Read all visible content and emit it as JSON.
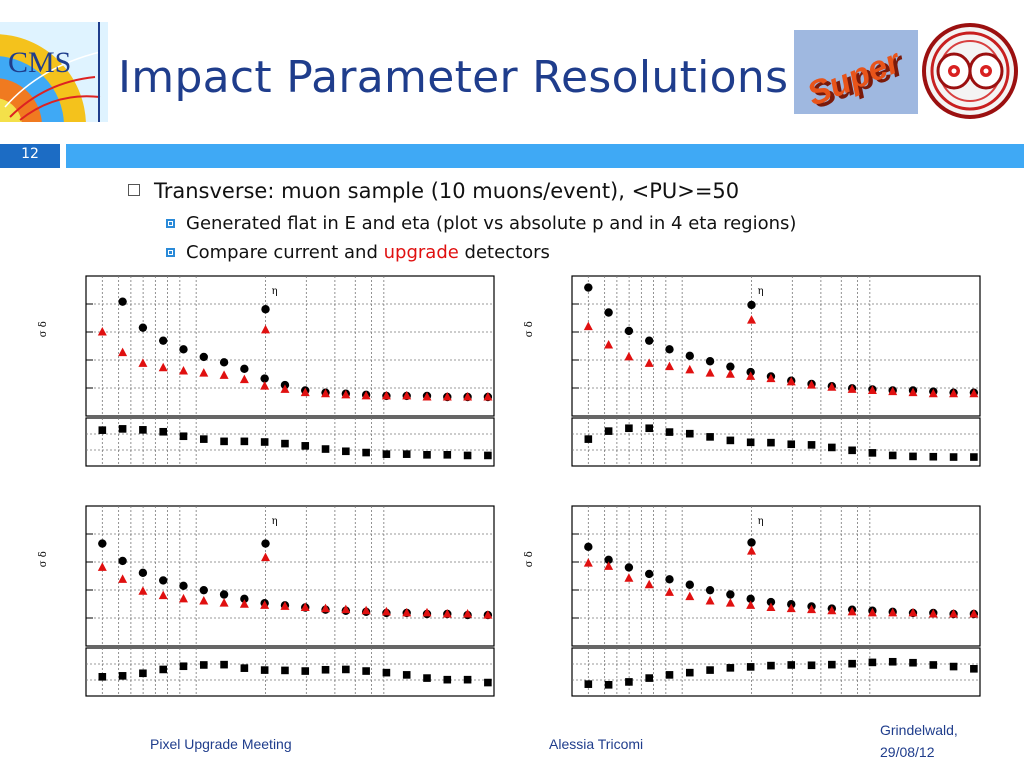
{
  "slide": {
    "title": "Impact Parameter Resolutions",
    "page_number": "12",
    "bullets": {
      "level1": "Transverse: muon sample (10 muons/event), <PU>=50",
      "level2_a": "Generated flat in E and eta (plot vs absolute p and in 4 eta regions)",
      "level2_b_prefix": "Compare current and ",
      "level2_b_highlight": "upgrade",
      "level2_b_suffix": " detectors"
    },
    "logos": {
      "cms": "CMS",
      "super": "Super"
    },
    "footer": {
      "left": "Pixel Upgrade Meeting",
      "center": "Alessia Tricomi",
      "right_line1": "Grindelwald,",
      "right_line2": "29/08/12"
    }
  },
  "colors": {
    "title": "#1f3d8c",
    "header_bar": "#3fa9f5",
    "page_box": "#1c6cc4",
    "bullet_marker": "#2a8ad8",
    "highlight": "#e01010",
    "current": "#000000",
    "upgrade": "#e01010"
  },
  "chart_data": [
    {
      "type": "scatter",
      "ylabel": "σ δ",
      "annotation": "η",
      "series": [
        {
          "marker": "circle",
          "color": "#000000",
          "values": [
            null,
            10,
            7.6,
            6.4,
            5.6,
            4.9,
            4.4,
            3.8,
            2.9,
            2.3,
            1.8,
            1.6,
            1.5,
            1.4,
            1.3,
            1.3,
            1.3,
            1.2,
            1.2,
            1.2
          ]
        },
        {
          "marker": "triangle",
          "color": "#e01010",
          "values": [
            7.2,
            5.3,
            4.3,
            3.9,
            3.6,
            3.4,
            3.2,
            2.8,
            2.2,
            1.9,
            1.6,
            1.5,
            1.4,
            1.3,
            1.3,
            1.3,
            1.2,
            1.2,
            1.2,
            1.2
          ]
        },
        {
          "marker": "square",
          "color": "#000000",
          "values": [
            0.87,
            0.91,
            0.88,
            0.82,
            0.68,
            0.59,
            0.52,
            0.52,
            0.5,
            0.45,
            0.38,
            0.28,
            0.21,
            0.17,
            0.12,
            0.12,
            0.1,
            0.1,
            0.08,
            0.08
          ]
        }
      ],
      "spike": {
        "circle": 9.3,
        "triangle": 7.4
      }
    },
    {
      "type": "scatter",
      "ylabel": "σ δ",
      "annotation": "η",
      "series": [
        {
          "marker": "circle",
          "color": "#000000",
          "values": [
            11.3,
            9.0,
            7.3,
            6.4,
            5.6,
            5.0,
            4.5,
            4.0,
            3.5,
            3.1,
            2.7,
            2.4,
            2.2,
            2.0,
            1.9,
            1.8,
            1.8,
            1.7,
            1.6,
            1.6
          ]
        },
        {
          "marker": "triangle",
          "color": "#e01010",
          "values": [
            7.7,
            6.0,
            4.9,
            4.3,
            4.0,
            3.7,
            3.4,
            3.3,
            3.1,
            2.9,
            2.6,
            2.3,
            2.1,
            1.9,
            1.8,
            1.7,
            1.6,
            1.5,
            1.5,
            1.5
          ]
        },
        {
          "marker": "square",
          "color": "#000000",
          "values": [
            0.59,
            0.84,
            0.93,
            0.93,
            0.81,
            0.76,
            0.66,
            0.55,
            0.49,
            0.48,
            0.43,
            0.41,
            0.33,
            0.24,
            0.16,
            0.08,
            0.05,
            0.04,
            0.03,
            0.03
          ]
        }
      ],
      "spike": {
        "circle": 9.7,
        "triangle": 8.3
      }
    },
    {
      "type": "scatter",
      "ylabel": "σ δ",
      "annotation": "η",
      "series": [
        {
          "marker": "circle",
          "color": "#000000",
          "values": [
            8.9,
            7.3,
            6.2,
            5.5,
            5.0,
            4.6,
            4.2,
            3.8,
            3.4,
            3.2,
            3.0,
            2.8,
            2.7,
            2.6,
            2.5,
            2.5,
            2.4,
            2.4,
            2.3,
            2.3
          ]
        },
        {
          "marker": "triangle",
          "color": "#e01010",
          "values": [
            6.7,
            5.6,
            4.5,
            4.1,
            3.8,
            3.6,
            3.4,
            3.3,
            3.2,
            3.1,
            3.0,
            2.9,
            2.8,
            2.7,
            2.6,
            2.5,
            2.5,
            2.4,
            2.4,
            2.3
          ]
        },
        {
          "marker": "square",
          "color": "#000000",
          "values": [
            0.35,
            0.38,
            0.46,
            0.58,
            0.68,
            0.72,
            0.73,
            0.62,
            0.56,
            0.55,
            0.53,
            0.57,
            0.58,
            0.53,
            0.48,
            0.41,
            0.31,
            0.26,
            0.26,
            0.17
          ]
        }
      ],
      "spike": {
        "circle": 8.9,
        "triangle": 7.6
      }
    },
    {
      "type": "scatter",
      "ylabel": "σ δ",
      "annotation": "η",
      "series": [
        {
          "marker": "circle",
          "color": "#000000",
          "values": [
            8.6,
            7.4,
            6.7,
            6.1,
            5.6,
            5.1,
            4.6,
            4.2,
            3.8,
            3.5,
            3.3,
            3.1,
            2.9,
            2.8,
            2.7,
            2.6,
            2.5,
            2.5,
            2.4,
            2.4
          ]
        },
        {
          "marker": "triangle",
          "color": "#e01010",
          "values": [
            7.1,
            6.8,
            5.7,
            5.1,
            4.4,
            4.0,
            3.6,
            3.4,
            3.2,
            3.0,
            2.9,
            2.8,
            2.7,
            2.6,
            2.5,
            2.5,
            2.5,
            2.4,
            2.4,
            2.4
          ]
        },
        {
          "marker": "square",
          "color": "#000000",
          "values": [
            0.12,
            0.1,
            0.19,
            0.31,
            0.41,
            0.48,
            0.56,
            0.63,
            0.66,
            0.7,
            0.72,
            0.71,
            0.73,
            0.76,
            0.8,
            0.82,
            0.79,
            0.72,
            0.67,
            0.6
          ]
        }
      ],
      "spike": {
        "circle": 9.0,
        "triangle": 8.2
      }
    }
  ]
}
